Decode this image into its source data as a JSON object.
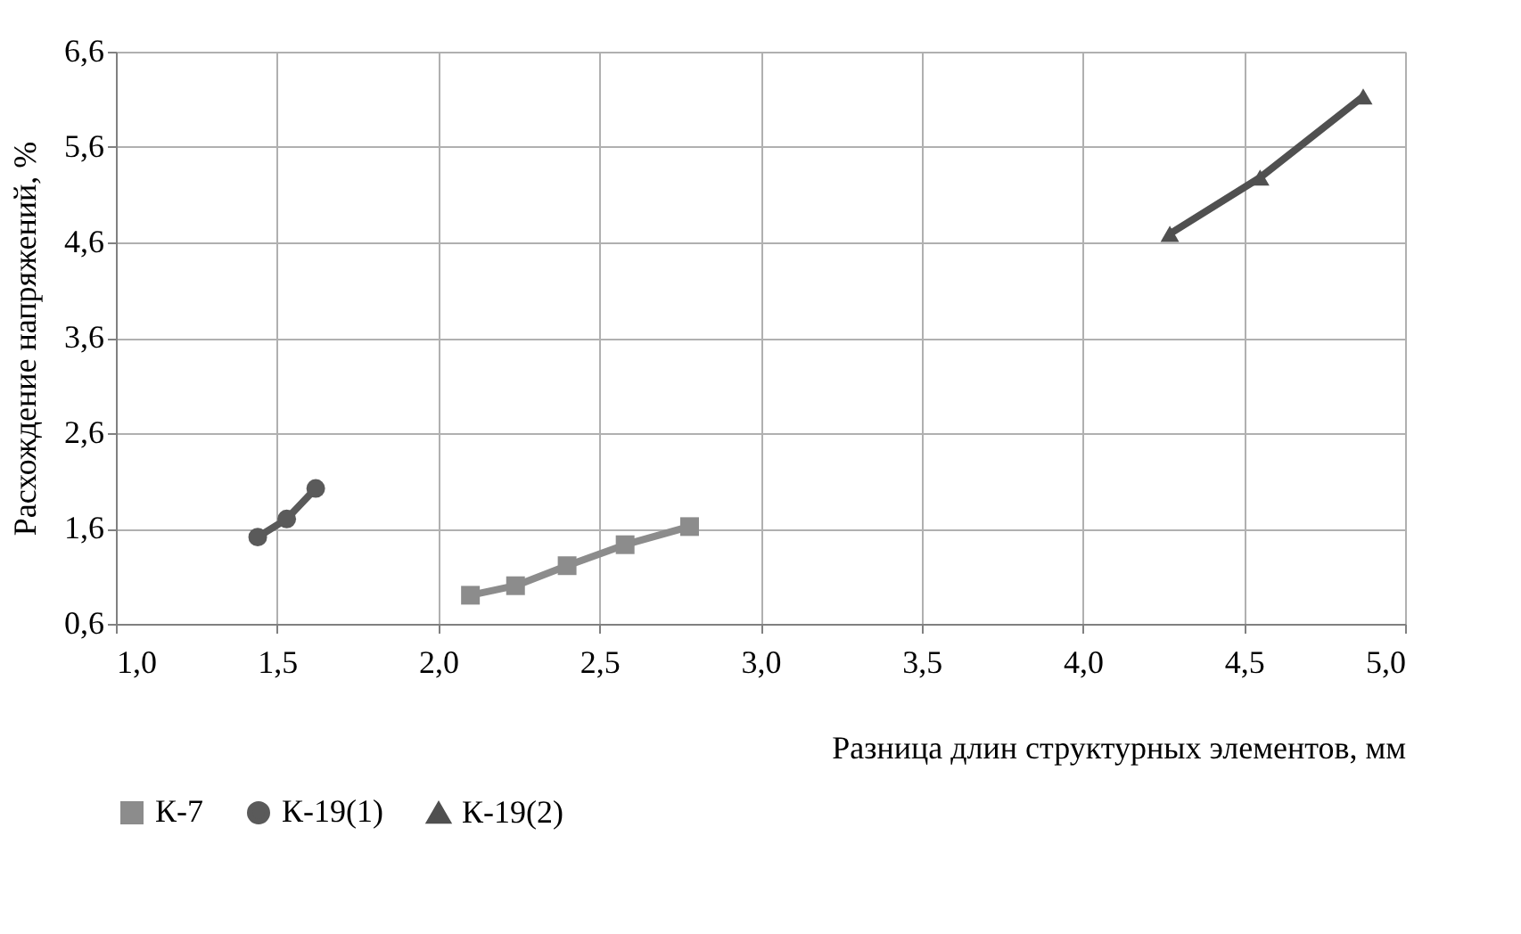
{
  "chart_data": {
    "type": "line",
    "xlabel": "Разница длин структурных элементов, мм",
    "ylabel": "Расхождение напряжений, %",
    "xlim": [
      1.0,
      5.0
    ],
    "xticks": [
      {
        "value": 1.0,
        "label": "1,0"
      },
      {
        "value": 1.5,
        "label": "1,5"
      },
      {
        "value": 2.0,
        "label": "2,0"
      },
      {
        "value": 2.5,
        "label": "2,5"
      },
      {
        "value": 3.0,
        "label": "3,0"
      },
      {
        "value": 3.5,
        "label": "3,5"
      },
      {
        "value": 4.0,
        "label": "4,0"
      },
      {
        "value": 4.5,
        "label": "4,5"
      },
      {
        "value": 5.0,
        "label": "5,0"
      }
    ],
    "ylim": [
      0.6,
      6.6
    ],
    "yticks": [
      {
        "value": 0.6,
        "label": "0,6"
      },
      {
        "value": 1.6,
        "label": "1,6"
      },
      {
        "value": 2.6,
        "label": "2,6"
      },
      {
        "value": 3.6,
        "label": "3,6"
      },
      {
        "value": 4.6,
        "label": "4,6"
      },
      {
        "value": 5.6,
        "label": "5,6"
      },
      {
        "value": 6.6,
        "label": "6,6"
      }
    ],
    "grid": true,
    "legend": "bottom",
    "line_style": "solid",
    "series": [
      {
        "name": "К-7",
        "color": "#8c8c8c",
        "marker": "square",
        "x": [
          2.1,
          2.24,
          2.4,
          2.58,
          2.78
        ],
        "values": [
          0.9,
          1.0,
          1.21,
          1.43,
          1.62
        ]
      },
      {
        "name": "К-19(1)",
        "color": "#5a5a5a",
        "marker": "circle",
        "x": [
          1.44,
          1.53,
          1.62
        ],
        "values": [
          1.51,
          1.7,
          2.02
        ]
      },
      {
        "name": "К-19(2)",
        "color": "#505050",
        "marker": "triangle",
        "x": [
          4.27,
          4.55,
          4.87
        ],
        "values": [
          4.69,
          5.28,
          6.13
        ]
      }
    ]
  }
}
